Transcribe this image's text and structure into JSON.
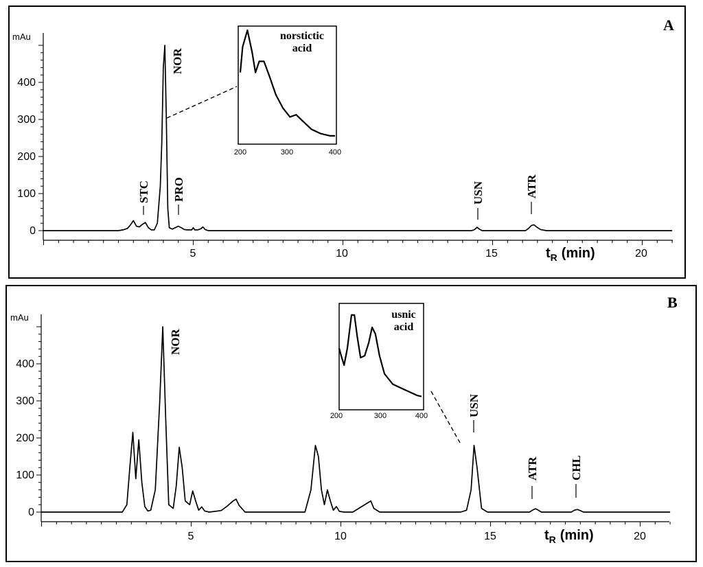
{
  "chart_data": [
    {
      "type": "line",
      "panel": "A",
      "ylabel": "mAu",
      "xlabel_main": "t",
      "xlabel_sub": "R",
      "xlabel_unit": "(min)",
      "xlim": [
        0,
        21
      ],
      "ylim": [
        -10,
        520
      ],
      "x_ticks": [
        5,
        10,
        15,
        20
      ],
      "y_ticks": [
        0,
        100,
        200,
        300,
        400
      ],
      "series": [
        {
          "x": [
            0,
            2.5,
            2.65,
            2.8,
            2.9,
            3.0,
            3.1,
            3.2,
            3.3,
            3.4,
            3.5,
            3.6,
            3.7,
            3.8,
            3.9,
            3.95,
            4.0,
            4.05,
            4.1,
            4.15,
            4.2,
            4.3,
            4.4,
            4.5,
            4.6,
            4.7,
            4.8,
            4.95,
            5.0,
            5.05,
            5.15,
            5.25,
            5.32,
            5.4,
            5.5,
            14.3,
            14.4,
            14.48,
            14.56,
            14.65,
            14.8,
            16.1,
            16.2,
            16.3,
            16.38,
            16.47,
            16.6,
            16.8,
            21
          ],
          "y": [
            0,
            0,
            2,
            6,
            15,
            27,
            12,
            10,
            17,
            22,
            8,
            2,
            2,
            20,
            120,
            240,
            440,
            500,
            300,
            60,
            8,
            4,
            8,
            12,
            8,
            3,
            2,
            2,
            8,
            2,
            2,
            5,
            10,
            3,
            0,
            0,
            3,
            9,
            4,
            0,
            0,
            0,
            6,
            14,
            16,
            10,
            3,
            0,
            0
          ]
        }
      ],
      "annotations": [
        {
          "text": "STC",
          "x": 3.45
        },
        {
          "text": "NOR",
          "x": 4.05
        },
        {
          "text": "PRO",
          "x": 4.5
        },
        {
          "text": "USN",
          "x": 14.5
        },
        {
          "text": "ATR",
          "x": 16.35
        }
      ],
      "inset": {
        "title_line1": "norstictic",
        "title_line2": "acid",
        "xlim": [
          200,
          400
        ],
        "x_ticks": [
          200,
          300,
          400
        ],
        "x": [
          200,
          205,
          215,
          225,
          232,
          240,
          250,
          262,
          275,
          290,
          305,
          318,
          330,
          350,
          370,
          390,
          400
        ],
        "y": [
          0.62,
          0.85,
          1.0,
          0.8,
          0.62,
          0.72,
          0.72,
          0.58,
          0.42,
          0.3,
          0.22,
          0.24,
          0.19,
          0.11,
          0.07,
          0.05,
          0.05
        ]
      }
    },
    {
      "type": "line",
      "panel": "B",
      "ylabel": "mAu",
      "xlabel_main": "t",
      "xlabel_sub": "R",
      "xlabel_unit": "(min)",
      "xlim": [
        0,
        21
      ],
      "ylim": [
        -10,
        520
      ],
      "x_ticks": [
        5,
        10,
        15,
        20
      ],
      "y_ticks": [
        0,
        100,
        200,
        300,
        400
      ],
      "series": [
        {
          "x": [
            0,
            2.7,
            2.85,
            2.95,
            3.05,
            3.15,
            3.25,
            3.35,
            3.45,
            3.55,
            3.65,
            3.8,
            3.95,
            4.05,
            4.15,
            4.25,
            4.4,
            4.5,
            4.6,
            4.7,
            4.8,
            4.95,
            5.05,
            5.15,
            5.25,
            5.35,
            5.45,
            5.6,
            6.0,
            6.2,
            6.4,
            6.5,
            6.6,
            6.8,
            8.8,
            9.0,
            9.15,
            9.25,
            9.35,
            9.45,
            9.55,
            9.65,
            9.75,
            9.85,
            9.95,
            10.1,
            10.4,
            10.7,
            10.9,
            11.0,
            11.1,
            11.3,
            14.0,
            14.2,
            14.35,
            14.45,
            14.55,
            14.7,
            14.9,
            16.3,
            16.4,
            16.5,
            16.6,
            16.7,
            17.7,
            17.8,
            17.9,
            18.0,
            18.1,
            21
          ],
          "y": [
            0,
            0,
            20,
            120,
            215,
            90,
            195,
            80,
            15,
            3,
            5,
            60,
            300,
            500,
            250,
            20,
            10,
            70,
            175,
            120,
            30,
            20,
            57,
            30,
            5,
            14,
            3,
            0,
            4,
            16,
            30,
            35,
            18,
            0,
            0,
            60,
            180,
            150,
            60,
            20,
            60,
            30,
            5,
            15,
            2,
            0,
            0,
            15,
            25,
            30,
            10,
            0,
            0,
            5,
            60,
            180,
            120,
            10,
            0,
            0,
            5,
            9,
            5,
            0,
            0,
            5,
            7,
            4,
            0,
            0
          ]
        }
      ],
      "annotations": [
        {
          "text": "NOR",
          "x": 4.3
        },
        {
          "text": "USN",
          "x": 14.5
        },
        {
          "text": "ATR",
          "x": 16.5
        },
        {
          "text": "CHL",
          "x": 17.9
        }
      ],
      "inset": {
        "title_line1": "usnic",
        "title_line2": "acid",
        "xlim": [
          200,
          400
        ],
        "x_ticks": [
          200,
          300,
          400
        ],
        "x": [
          200,
          205,
          212,
          220,
          230,
          237,
          244,
          252,
          262,
          272,
          280,
          288,
          298,
          310,
          330,
          350,
          370,
          390,
          400
        ],
        "y": [
          0.6,
          0.52,
          0.42,
          0.6,
          0.95,
          0.95,
          0.72,
          0.5,
          0.52,
          0.66,
          0.82,
          0.75,
          0.52,
          0.33,
          0.22,
          0.18,
          0.14,
          0.1,
          0.09
        ]
      }
    }
  ],
  "panels": {
    "A": {
      "letter": "A",
      "ylabel": "mAu",
      "xtitle_main": "t",
      "xtitle_sub": "R",
      "xtitle_unit": "(min)",
      "y_tick_labels": [
        "400",
        "300",
        "200",
        "100",
        "0"
      ],
      "x_tick_labels": [
        "5",
        "10",
        "15",
        "20"
      ],
      "peaks": [
        "STC",
        "NOR",
        "PRO",
        "USN",
        "ATR"
      ],
      "inset_title_1": "norstictic",
      "inset_title_2": "acid",
      "inset_ticks": [
        "200",
        "300",
        "400"
      ]
    },
    "B": {
      "letter": "B",
      "ylabel": "mAu",
      "xtitle_main": "t",
      "xtitle_sub": "R",
      "xtitle_unit": "(min)",
      "y_tick_labels": [
        "400",
        "300",
        "200",
        "100",
        "0"
      ],
      "x_tick_labels": [
        "5",
        "10",
        "15",
        "20"
      ],
      "peaks": [
        "NOR",
        "USN",
        "ATR",
        "CHL"
      ],
      "inset_title_1": "usnic",
      "inset_title_2": "acid",
      "inset_ticks": [
        "200",
        "300",
        "400"
      ]
    }
  }
}
